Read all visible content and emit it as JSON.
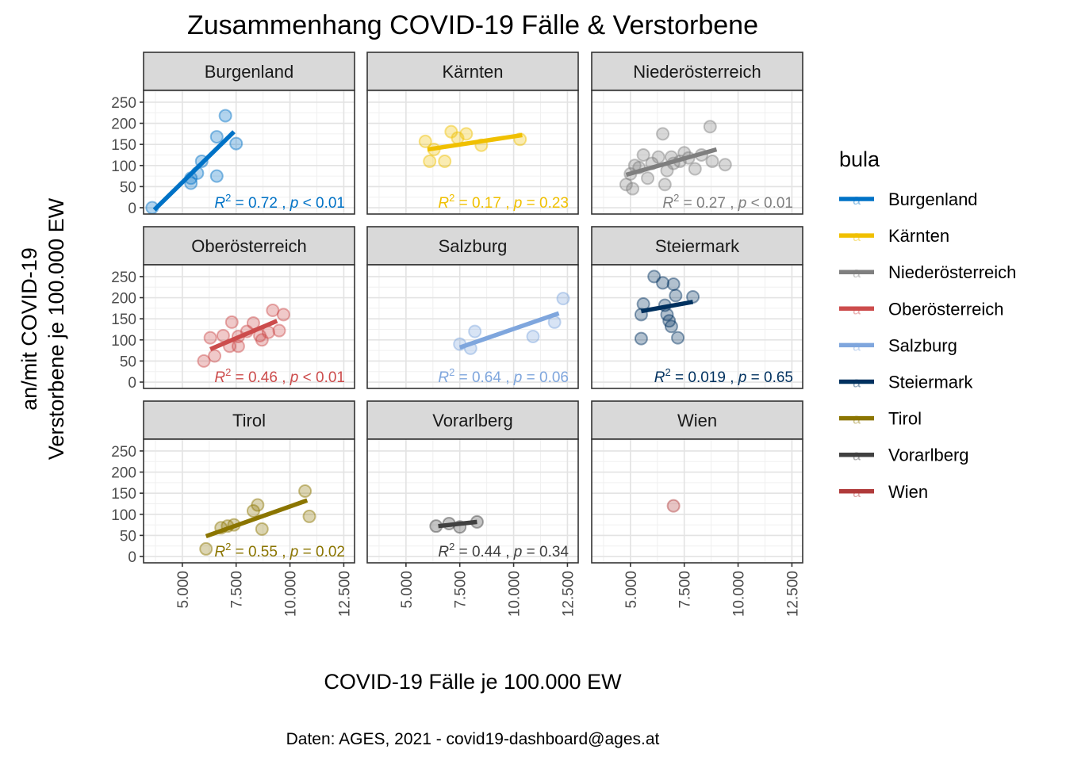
{
  "chart_data": {
    "type": "scatter",
    "title": "Zusammenhang COVID-19 Fälle & Verstorbene",
    "xlabel": "COVID-19 Fälle je 100.000 EW",
    "ylabel_lines": [
      "an/mit COVID-19",
      "Verstorbene je 100.000 EW"
    ],
    "caption": "Daten: AGES, 2021 - covid19-dashboard@ages.at",
    "xlim": [
      3200,
      13000
    ],
    "ylim": [
      -15,
      278
    ],
    "x_ticks": [
      5000,
      7500,
      10000,
      12500
    ],
    "x_tick_labels": [
      "5.000",
      "7.500",
      "10.000",
      "12.500"
    ],
    "y_ticks": [
      0,
      50,
      100,
      150,
      200,
      250
    ],
    "y_tick_labels": [
      "0",
      "50",
      "100",
      "150",
      "200",
      "250"
    ],
    "grid": true,
    "legend": {
      "title": "bula",
      "position": "right",
      "key_glyph": "a"
    },
    "facets": [
      {
        "name": "Burgenland",
        "color": "#0072C6",
        "points": [
          [
            3600,
            0
          ],
          [
            5400,
            58
          ],
          [
            5400,
            70
          ],
          [
            5700,
            82
          ],
          [
            5900,
            110
          ],
          [
            6600,
            75
          ],
          [
            6600,
            168
          ],
          [
            7000,
            218
          ],
          [
            7500,
            152
          ]
        ],
        "fit": {
          "x": [
            3700,
            7400
          ],
          "y": [
            -5,
            180
          ]
        },
        "stat": {
          "r2": "0.72",
          "p": "< 0.01"
        }
      },
      {
        "name": "Kärnten",
        "color": "#F0C000",
        "points": [
          [
            5900,
            157
          ],
          [
            6100,
            110
          ],
          [
            6300,
            138
          ],
          [
            6800,
            110
          ],
          [
            7100,
            180
          ],
          [
            7400,
            165
          ],
          [
            7800,
            175
          ],
          [
            8500,
            148
          ],
          [
            10300,
            162
          ]
        ],
        "fit": {
          "x": [
            6000,
            10400
          ],
          "y": [
            138,
            172
          ]
        },
        "stat": {
          "r2": "0.17",
          "p": "= 0.23"
        }
      },
      {
        "name": "Niederösterreich",
        "color": "#7F7F7F",
        "points": [
          [
            4800,
            55
          ],
          [
            5000,
            80
          ],
          [
            5100,
            45
          ],
          [
            5200,
            100
          ],
          [
            5400,
            95
          ],
          [
            5600,
            125
          ],
          [
            5800,
            70
          ],
          [
            6000,
            105
          ],
          [
            6300,
            120
          ],
          [
            6500,
            175
          ],
          [
            6600,
            55
          ],
          [
            6700,
            88
          ],
          [
            6900,
            120
          ],
          [
            7000,
            105
          ],
          [
            7300,
            110
          ],
          [
            7500,
            130
          ],
          [
            7700,
            118
          ],
          [
            8000,
            92
          ],
          [
            8300,
            125
          ],
          [
            8700,
            192
          ],
          [
            8800,
            110
          ],
          [
            9400,
            102
          ]
        ],
        "fit": {
          "x": [
            4800,
            9000
          ],
          "y": [
            78,
            138
          ]
        },
        "stat": {
          "r2": "0.27",
          "p": "< 0.01"
        }
      },
      {
        "name": "Oberösterreich",
        "color": "#CC4C4C",
        "points": [
          [
            6000,
            50
          ],
          [
            6300,
            105
          ],
          [
            6500,
            62
          ],
          [
            6900,
            110
          ],
          [
            7200,
            85
          ],
          [
            7300,
            142
          ],
          [
            7600,
            85
          ],
          [
            7600,
            108
          ],
          [
            8000,
            120
          ],
          [
            8300,
            140
          ],
          [
            8600,
            110
          ],
          [
            8700,
            100
          ],
          [
            9000,
            118
          ],
          [
            9200,
            170
          ],
          [
            9500,
            122
          ],
          [
            9700,
            160
          ]
        ],
        "fit": {
          "x": [
            6300,
            9400
          ],
          "y": [
            78,
            145
          ]
        },
        "stat": {
          "r2": "0.46",
          "p": "< 0.01"
        }
      },
      {
        "name": "Salzburg",
        "color": "#7FA6DD",
        "points": [
          [
            7500,
            90
          ],
          [
            8000,
            80
          ],
          [
            8200,
            120
          ],
          [
            10900,
            108
          ],
          [
            11900,
            142
          ],
          [
            12300,
            198
          ]
        ],
        "fit": {
          "x": [
            7500,
            12100
          ],
          "y": [
            82,
            163
          ]
        },
        "stat": {
          "r2": "0.64",
          "p": "= 0.06"
        }
      },
      {
        "name": "Steiermark",
        "color": "#00315F",
        "points": [
          [
            5500,
            103
          ],
          [
            5500,
            160
          ],
          [
            5600,
            185
          ],
          [
            6100,
            250
          ],
          [
            6500,
            235
          ],
          [
            6600,
            182
          ],
          [
            6700,
            160
          ],
          [
            6800,
            145
          ],
          [
            6900,
            132
          ],
          [
            7000,
            232
          ],
          [
            7100,
            205
          ],
          [
            7200,
            105
          ],
          [
            7900,
            202
          ]
        ],
        "fit": {
          "x": [
            5500,
            7900
          ],
          "y": [
            168,
            190
          ]
        },
        "stat": {
          "r2": "0.019",
          "p": "= 0.65"
        }
      },
      {
        "name": "Tirol",
        "color": "#8B7500",
        "points": [
          [
            6100,
            18
          ],
          [
            6800,
            68
          ],
          [
            7100,
            72
          ],
          [
            7400,
            75
          ],
          [
            8300,
            108
          ],
          [
            8500,
            122
          ],
          [
            8700,
            65
          ],
          [
            10700,
            155
          ],
          [
            10900,
            95
          ]
        ],
        "fit": {
          "x": [
            6100,
            10800
          ],
          "y": [
            48,
            133
          ]
        },
        "stat": {
          "r2": "0.55",
          "p": "= 0.02"
        }
      },
      {
        "name": "Vorarlberg",
        "color": "#404040",
        "points": [
          [
            6400,
            72
          ],
          [
            7000,
            78
          ],
          [
            7500,
            70
          ],
          [
            8300,
            82
          ]
        ],
        "fit": {
          "x": [
            6500,
            8300
          ],
          "y": [
            72,
            82
          ]
        },
        "stat": {
          "r2": "0.44",
          "p": "= 0.34"
        }
      },
      {
        "name": "Wien",
        "color": "#B03A3A",
        "points": [
          [
            7000,
            120
          ]
        ],
        "fit": null,
        "stat": null
      }
    ]
  }
}
